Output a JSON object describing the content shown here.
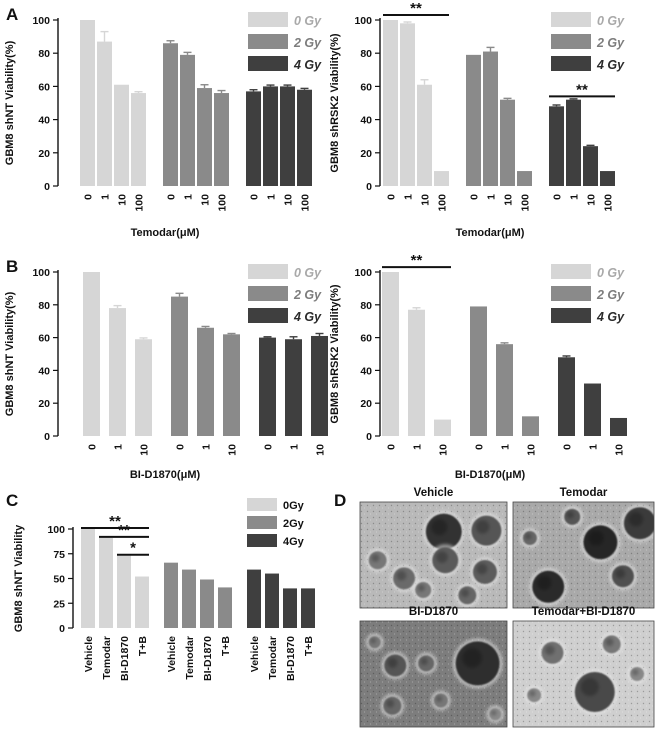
{
  "colors": {
    "g0": "#d6d6d6",
    "g2": "#8a8a8a",
    "g4": "#3f3f3f",
    "legend0": "#a9a9a9",
    "legend2": "#7d7d7d",
    "legend4": "#2b2b2b"
  },
  "panel_labels": [
    "A",
    "B",
    "C",
    "D"
  ],
  "chart_data": [
    {
      "id": "A-left",
      "panel": "A",
      "type": "bar",
      "ylabel": "GBM8 shNT Viability(%)",
      "xlabel": "Temodar(μM)",
      "ylim": [
        0,
        100
      ],
      "yticks": [
        0,
        20,
        40,
        60,
        80,
        100
      ],
      "categories": [
        "0",
        "1",
        "10",
        "100"
      ],
      "legend": [
        "0 Gy",
        "2 Gy",
        "4 Gy"
      ],
      "series": [
        {
          "name": "0 Gy",
          "values": [
            100,
            87,
            61,
            56
          ],
          "errors": [
            0,
            6,
            0,
            0.8
          ]
        },
        {
          "name": "2 Gy",
          "values": [
            86,
            79,
            59,
            56
          ],
          "errors": [
            1.5,
            1.5,
            2,
            1.5
          ]
        },
        {
          "name": "4 Gy",
          "values": [
            57,
            60,
            60,
            58
          ],
          "errors": [
            1,
            0.8,
            0.8,
            0.8
          ]
        }
      ],
      "significance": []
    },
    {
      "id": "A-right",
      "panel": "A",
      "type": "bar",
      "ylabel": "GBM8 shRSK2 Viability(%)",
      "xlabel": "Temodar(μM)",
      "ylim": [
        0,
        100
      ],
      "yticks": [
        0,
        20,
        40,
        60,
        80,
        100
      ],
      "categories": [
        "0",
        "1",
        "10",
        "100"
      ],
      "legend": [
        "0 Gy",
        "2 Gy",
        "4 Gy"
      ],
      "series": [
        {
          "name": "0 Gy",
          "values": [
            100,
            98,
            61,
            9
          ],
          "errors": [
            0,
            0.8,
            3,
            0
          ]
        },
        {
          "name": "2 Gy",
          "values": [
            79,
            81,
            52,
            9
          ],
          "errors": [
            0,
            2.5,
            0.8,
            0
          ]
        },
        {
          "name": "4 Gy",
          "values": [
            48,
            52,
            24,
            9
          ],
          "errors": [
            0.8,
            0.5,
            0.5,
            0
          ]
        }
      ],
      "significance": [
        {
          "label": "**",
          "y": 103,
          "from": [
            0,
            0
          ],
          "to": [
            0,
            3
          ]
        },
        {
          "label": "**",
          "y": 54,
          "from": [
            2,
            0
          ],
          "to": [
            2,
            3
          ]
        }
      ]
    },
    {
      "id": "B-left",
      "panel": "B",
      "type": "bar",
      "ylabel": "GBM8 shNT Viability(%)",
      "xlabel": "BI-D1870(μM)",
      "ylim": [
        0,
        100
      ],
      "yticks": [
        0,
        20,
        40,
        60,
        80,
        100
      ],
      "categories": [
        "0",
        "1",
        "10"
      ],
      "legend": [
        "0 Gy",
        "2 Gy",
        "4 Gy"
      ],
      "series": [
        {
          "name": "0 Gy",
          "values": [
            100,
            78,
            59
          ],
          "errors": [
            0,
            1.5,
            0.8
          ]
        },
        {
          "name": "2 Gy",
          "values": [
            85,
            66,
            62
          ],
          "errors": [
            2,
            0.8,
            0.5
          ]
        },
        {
          "name": "4 Gy",
          "values": [
            60,
            59,
            61
          ],
          "errors": [
            0.5,
            1.5,
            1.5
          ]
        }
      ],
      "significance": []
    },
    {
      "id": "B-right",
      "panel": "B",
      "type": "bar",
      "ylabel": "GBM8 shRSK2 Viability(%)",
      "xlabel": "BI-D1870(μM)",
      "ylim": [
        0,
        100
      ],
      "yticks": [
        0,
        20,
        40,
        60,
        80,
        100
      ],
      "categories": [
        "0",
        "1",
        "10"
      ],
      "legend": [
        "0 Gy",
        "2 Gy",
        "4 Gy"
      ],
      "series": [
        {
          "name": "0 Gy",
          "values": [
            100,
            77,
            10
          ],
          "errors": [
            0,
            1.2,
            0
          ]
        },
        {
          "name": "2 Gy",
          "values": [
            79,
            56,
            12
          ],
          "errors": [
            0,
            0.8,
            0
          ]
        },
        {
          "name": "4 Gy",
          "values": [
            48,
            32,
            11
          ],
          "errors": [
            0.8,
            0,
            0
          ]
        }
      ],
      "significance": [
        {
          "label": "**",
          "y": 103,
          "from": [
            0,
            0
          ],
          "to": [
            0,
            2
          ]
        }
      ]
    },
    {
      "id": "C",
      "panel": "C",
      "type": "bar",
      "ylabel": "GBM8 shNT Viability",
      "xlabel": "",
      "ylim": [
        0,
        100
      ],
      "yticks": [
        0,
        25,
        50,
        75,
        100
      ],
      "categories": [
        "Vehicle",
        "Temodar",
        "BI-D1870",
        "T+B"
      ],
      "legend": [
        "0Gy",
        "2Gy",
        "4Gy"
      ],
      "series": [
        {
          "name": "0Gy",
          "values": [
            100,
            91,
            73,
            52
          ]
        },
        {
          "name": "2Gy",
          "values": [
            66,
            59,
            49,
            41
          ]
        },
        {
          "name": "4Gy",
          "values": [
            59,
            55,
            40,
            40
          ]
        }
      ],
      "significance": [
        {
          "label": "**",
          "y": 101,
          "from": [
            0,
            0
          ],
          "to": [
            0,
            3
          ]
        },
        {
          "label": "**",
          "y": 92,
          "from": [
            0,
            1
          ],
          "to": [
            0,
            3
          ]
        },
        {
          "label": "*",
          "y": 74,
          "from": [
            0,
            2
          ],
          "to": [
            0,
            3
          ]
        }
      ]
    }
  ],
  "panel_d": {
    "images": [
      {
        "label": "Vehicle",
        "style": "vehicle"
      },
      {
        "label": "Temodar",
        "style": "temodar"
      },
      {
        "label": "BI-D1870",
        "style": "bid"
      },
      {
        "label": "Temodar+BI-D1870",
        "style": "combo"
      }
    ]
  }
}
